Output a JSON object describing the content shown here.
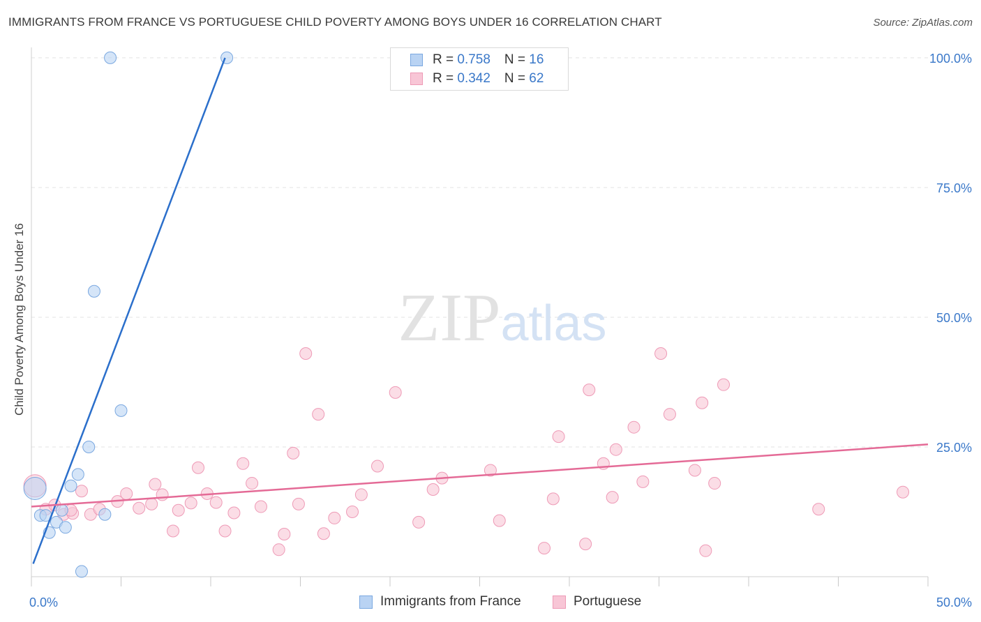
{
  "title": "IMMIGRANTS FROM FRANCE VS PORTUGUESE CHILD POVERTY AMONG BOYS UNDER 16 CORRELATION CHART",
  "source": "Source: ZipAtlas.com",
  "watermark": {
    "zip": "ZIP",
    "atlas": "atlas"
  },
  "legend_top": [
    {
      "r_label": "R = ",
      "r_value": "0.758",
      "n_label": "N = ",
      "n_value": "16"
    },
    {
      "r_label": "R = ",
      "r_value": "0.342",
      "n_label": "N = ",
      "n_value": "62"
    }
  ],
  "legend_bottom": [
    {
      "label": "Immigrants from France"
    },
    {
      "label": "Portuguese"
    }
  ],
  "colors": {
    "france_fill": "#b9d3f3",
    "france_stroke": "#7aa8e0",
    "france_line": "#2b6fcb",
    "portuguese_fill": "#f8c6d6",
    "portuguese_stroke": "#ee9ab6",
    "portuguese_line": "#e46a96",
    "tick_label": "#3a78c9",
    "grid": "#e3e3e3"
  },
  "chart_data": {
    "type": "scatter",
    "title": "IMMIGRANTS FROM FRANCE VS PORTUGUESE CHILD POVERTY AMONG BOYS UNDER 16 CORRELATION CHART",
    "xlabel": "",
    "ylabel": "Child Poverty Among Boys Under 16",
    "xlim": [
      0,
      50
    ],
    "ylim": [
      0,
      102
    ],
    "x_tick_labels": [
      {
        "value": 0,
        "label": "0.0%"
      },
      {
        "value": 50,
        "label": "50.0%"
      }
    ],
    "y_tick_labels": [
      {
        "value": 25,
        "label": "25.0%"
      },
      {
        "value": 50,
        "label": "50.0%"
      },
      {
        "value": 75,
        "label": "75.0%"
      },
      {
        "value": 100,
        "label": "100.0%"
      }
    ],
    "grid": true,
    "legend_position": "top-center",
    "series": [
      {
        "name": "Immigrants from France",
        "r": 0.758,
        "n": 16,
        "trend": {
          "x": [
            0.1,
            10.8
          ],
          "y": [
            2.5,
            100
          ]
        },
        "points": [
          {
            "x": 0.2,
            "y": 17.0,
            "big": true
          },
          {
            "x": 0.5,
            "y": 11.8
          },
          {
            "x": 0.8,
            "y": 11.8
          },
          {
            "x": 1.0,
            "y": 8.5
          },
          {
            "x": 1.4,
            "y": 10.5
          },
          {
            "x": 1.7,
            "y": 12.8
          },
          {
            "x": 1.9,
            "y": 9.5
          },
          {
            "x": 2.2,
            "y": 17.5
          },
          {
            "x": 2.6,
            "y": 19.7
          },
          {
            "x": 2.8,
            "y": 1.0
          },
          {
            "x": 3.2,
            "y": 25.0
          },
          {
            "x": 3.5,
            "y": 55.0
          },
          {
            "x": 4.1,
            "y": 12.0
          },
          {
            "x": 4.4,
            "y": 100.0
          },
          {
            "x": 5.0,
            "y": 32.0
          },
          {
            "x": 10.9,
            "y": 100.0
          }
        ]
      },
      {
        "name": "Portuguese",
        "r": 0.342,
        "n": 62,
        "trend": {
          "x": [
            0,
            50
          ],
          "y": [
            13.5,
            25.5
          ]
        },
        "points": [
          {
            "x": 0.2,
            "y": 17.5,
            "big": true
          },
          {
            "x": 0.8,
            "y": 13.0
          },
          {
            "x": 1.3,
            "y": 13.8
          },
          {
            "x": 1.8,
            "y": 12.0
          },
          {
            "x": 2.3,
            "y": 12.2
          },
          {
            "x": 2.8,
            "y": 16.5
          },
          {
            "x": 3.3,
            "y": 12.0
          },
          {
            "x": 3.8,
            "y": 13.0
          },
          {
            "x": 4.8,
            "y": 14.5
          },
          {
            "x": 5.3,
            "y": 16.0
          },
          {
            "x": 6.0,
            "y": 13.2
          },
          {
            "x": 6.7,
            "y": 14.0
          },
          {
            "x": 6.9,
            "y": 17.8
          },
          {
            "x": 7.3,
            "y": 15.8
          },
          {
            "x": 7.9,
            "y": 8.8
          },
          {
            "x": 8.2,
            "y": 12.8
          },
          {
            "x": 8.9,
            "y": 14.2
          },
          {
            "x": 9.3,
            "y": 21.0
          },
          {
            "x": 9.8,
            "y": 16.0
          },
          {
            "x": 10.3,
            "y": 14.3
          },
          {
            "x": 10.8,
            "y": 8.8
          },
          {
            "x": 11.3,
            "y": 12.3
          },
          {
            "x": 11.8,
            "y": 21.8
          },
          {
            "x": 12.3,
            "y": 18.0
          },
          {
            "x": 12.8,
            "y": 13.5
          },
          {
            "x": 13.8,
            "y": 5.2
          },
          {
            "x": 14.1,
            "y": 8.2
          },
          {
            "x": 14.6,
            "y": 23.8
          },
          {
            "x": 14.9,
            "y": 14.0
          },
          {
            "x": 15.3,
            "y": 43.0
          },
          {
            "x": 16.0,
            "y": 31.3
          },
          {
            "x": 16.3,
            "y": 8.3
          },
          {
            "x": 16.9,
            "y": 11.3
          },
          {
            "x": 17.9,
            "y": 12.5
          },
          {
            "x": 18.4,
            "y": 15.8
          },
          {
            "x": 19.3,
            "y": 21.3
          },
          {
            "x": 20.3,
            "y": 35.5
          },
          {
            "x": 21.6,
            "y": 10.5
          },
          {
            "x": 22.4,
            "y": 16.8
          },
          {
            "x": 22.9,
            "y": 19.0
          },
          {
            "x": 25.6,
            "y": 20.5
          },
          {
            "x": 26.1,
            "y": 10.8
          },
          {
            "x": 28.6,
            "y": 5.5
          },
          {
            "x": 29.1,
            "y": 15.0
          },
          {
            "x": 29.4,
            "y": 27.0
          },
          {
            "x": 30.9,
            "y": 6.3
          },
          {
            "x": 31.1,
            "y": 36.0
          },
          {
            "x": 31.9,
            "y": 21.8
          },
          {
            "x": 32.4,
            "y": 15.3
          },
          {
            "x": 32.6,
            "y": 24.5
          },
          {
            "x": 33.6,
            "y": 28.8
          },
          {
            "x": 34.1,
            "y": 18.3
          },
          {
            "x": 35.1,
            "y": 43.0
          },
          {
            "x": 35.6,
            "y": 31.3
          },
          {
            "x": 37.0,
            "y": 20.5
          },
          {
            "x": 37.4,
            "y": 33.5
          },
          {
            "x": 37.6,
            "y": 5.0
          },
          {
            "x": 38.1,
            "y": 18.0
          },
          {
            "x": 38.6,
            "y": 37.0
          },
          {
            "x": 43.9,
            "y": 13.0
          },
          {
            "x": 48.6,
            "y": 16.3
          },
          {
            "x": 2.2,
            "y": 12.8
          }
        ]
      }
    ]
  }
}
